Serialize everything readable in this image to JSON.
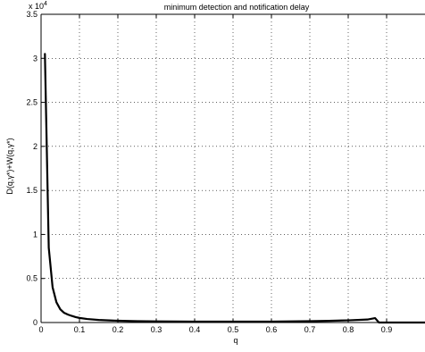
{
  "chart_data": {
    "type": "line",
    "title": "minimum detection and notification delay",
    "xlabel": "q",
    "ylabel": "D(q,γ*)+W(q,γ*)",
    "y_multiplier": "x 10",
    "y_exponent": "4",
    "xlim": [
      0,
      1
    ],
    "ylim": [
      0,
      35000
    ],
    "grid": true,
    "x_ticks": [
      0,
      0.1,
      0.2,
      0.3,
      0.4,
      0.5,
      0.6,
      0.7,
      0.8,
      0.9
    ],
    "x_tick_labels": [
      "0",
      "0.1",
      "0.2",
      "0.3",
      "0.4",
      "0.5",
      "0.6",
      "0.7",
      "0.8",
      "0.9"
    ],
    "y_ticks": [
      0,
      5000,
      10000,
      15000,
      20000,
      25000,
      30000,
      35000
    ],
    "y_tick_labels": [
      "0",
      "0.5",
      "1",
      "1.5",
      "2",
      "2.5",
      "3",
      "3.5"
    ],
    "series": [
      {
        "color": "#000000",
        "x": [
          0.01,
          0.02,
          0.03,
          0.04,
          0.05,
          0.06,
          0.07,
          0.08,
          0.09,
          0.1,
          0.12,
          0.15,
          0.2,
          0.25,
          0.3,
          0.4,
          0.5,
          0.6,
          0.7,
          0.75,
          0.8,
          0.85,
          0.87,
          0.88,
          1.0
        ],
        "y": [
          30500,
          8500,
          4000,
          2300,
          1500,
          1100,
          900,
          750,
          620,
          520,
          400,
          290,
          200,
          150,
          130,
          110,
          100,
          110,
          150,
          190,
          250,
          340,
          500,
          0,
          0
        ]
      }
    ]
  }
}
